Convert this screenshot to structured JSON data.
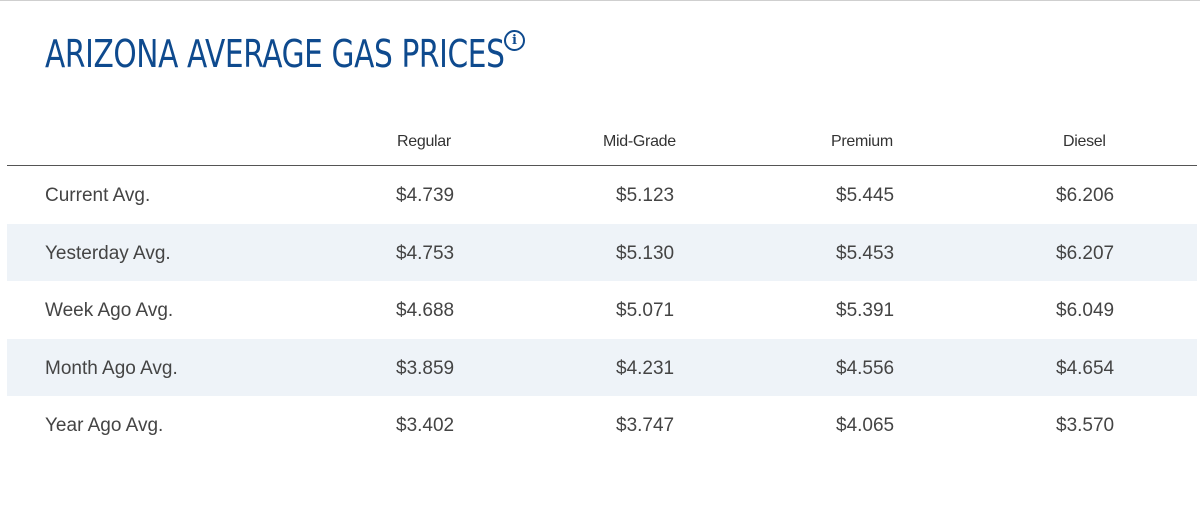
{
  "title": "ARIZONA AVERAGE GAS PRICES",
  "info_icon": "info-icon",
  "colors": {
    "title": "#0e4a8e",
    "alt_row": "#eef3f8",
    "text": "#444444"
  },
  "table": {
    "columns": [
      "Regular",
      "Mid-Grade",
      "Premium",
      "Diesel"
    ],
    "rows": [
      {
        "label": "Current Avg.",
        "values": [
          "$4.739",
          "$5.123",
          "$5.445",
          "$6.206"
        ]
      },
      {
        "label": "Yesterday Avg.",
        "values": [
          "$4.753",
          "$5.130",
          "$5.453",
          "$6.207"
        ]
      },
      {
        "label": "Week Ago Avg.",
        "values": [
          "$4.688",
          "$5.071",
          "$5.391",
          "$6.049"
        ]
      },
      {
        "label": "Month Ago Avg.",
        "values": [
          "$3.859",
          "$4.231",
          "$4.556",
          "$4.654"
        ]
      },
      {
        "label": "Year Ago Avg.",
        "values": [
          "$3.402",
          "$3.747",
          "$4.065",
          "$3.570"
        ]
      }
    ]
  }
}
